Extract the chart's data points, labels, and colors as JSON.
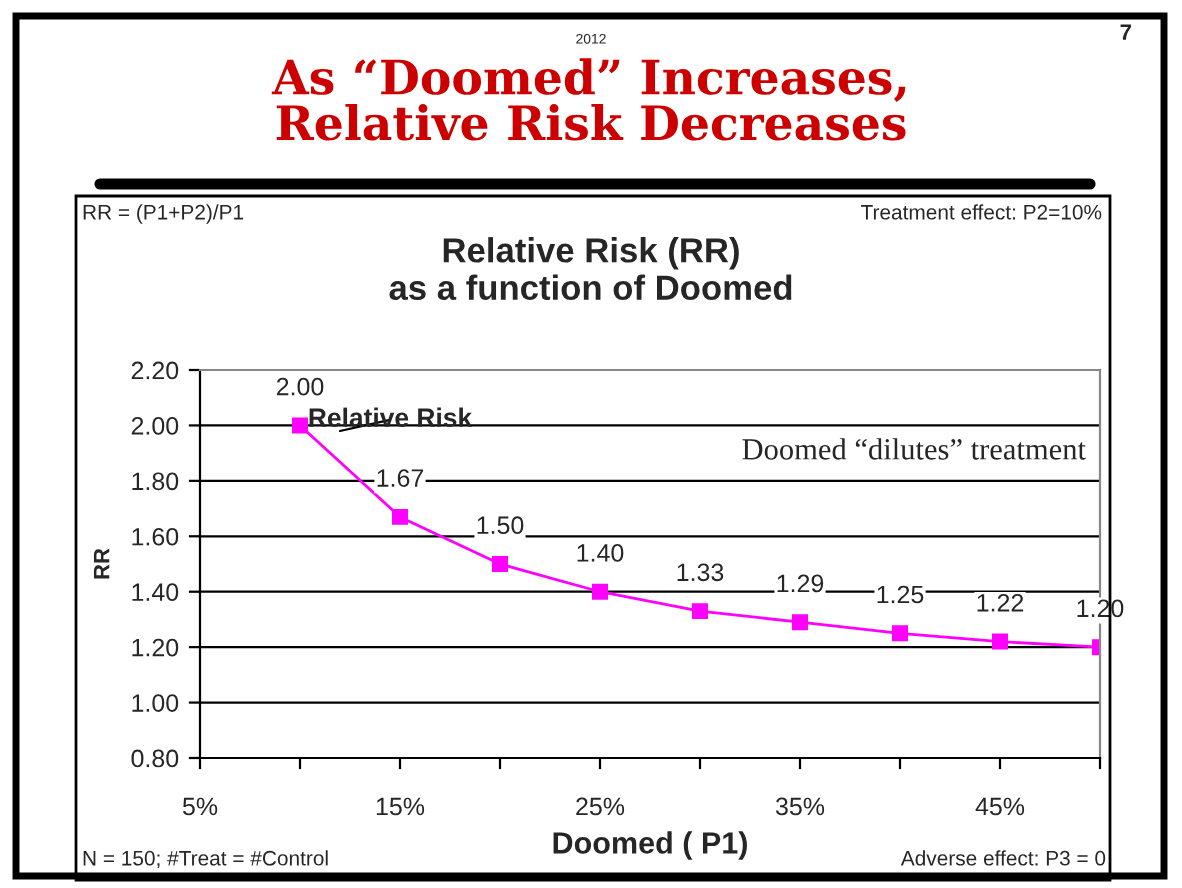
{
  "chart_data": {
    "type": "line",
    "title": "As “Doomed” Increases, Relative Risk Decreases",
    "subtitle": "Relative Risk (RR)\nas a function of Doomed",
    "xlabel": "Doomed ( P1)",
    "ylabel": "RR",
    "x": [
      10,
      15,
      20,
      25,
      30,
      35,
      40,
      45,
      50
    ],
    "series": [
      {
        "name": "Relative Risk",
        "color": "#ff00ff",
        "values": [
          2.0,
          1.67,
          1.5,
          1.4,
          1.33,
          1.29,
          1.25,
          1.22,
          1.2
        ],
        "value_labels": [
          "2.00",
          "1.67",
          "1.50",
          "1.40",
          "1.33",
          "1.29",
          "1.25",
          "1.22",
          "1.20"
        ]
      }
    ],
    "xlim": [
      5,
      50
    ],
    "xticks": [
      {
        "value": 5,
        "label": "5%"
      },
      {
        "value": 10,
        "label": null
      },
      {
        "value": 15,
        "label": "15%"
      },
      {
        "value": 20,
        "label": null
      },
      {
        "value": 25,
        "label": "25%"
      },
      {
        "value": 30,
        "label": null
      },
      {
        "value": 35,
        "label": "35%"
      },
      {
        "value": 40,
        "label": null
      },
      {
        "value": 45,
        "label": "45%"
      },
      {
        "value": 50,
        "label": null
      }
    ],
    "ylim": [
      0.8,
      2.2
    ],
    "yticks": [
      {
        "value": 0.8,
        "label": "0.80"
      },
      {
        "value": 1.0,
        "label": "1.00"
      },
      {
        "value": 1.2,
        "label": "1.20"
      },
      {
        "value": 1.4,
        "label": "1.40"
      },
      {
        "value": 1.6,
        "label": "1.60"
      },
      {
        "value": 1.8,
        "label": "1.80"
      },
      {
        "value": 2.0,
        "label": "2.00"
      },
      {
        "value": 2.2,
        "label": "2.20"
      }
    ],
    "grid": "y",
    "marker": "square",
    "line_style": "solid",
    "legend": false,
    "annotations": [
      "2012",
      "7",
      "RR = (P1+P2)/P1",
      "Treatment effect: P2=10%",
      "Doomed “dilutes” treatment",
      "N = 150; #Treat = #Control",
      "Adverse effect: P3 = 0"
    ]
  }
}
